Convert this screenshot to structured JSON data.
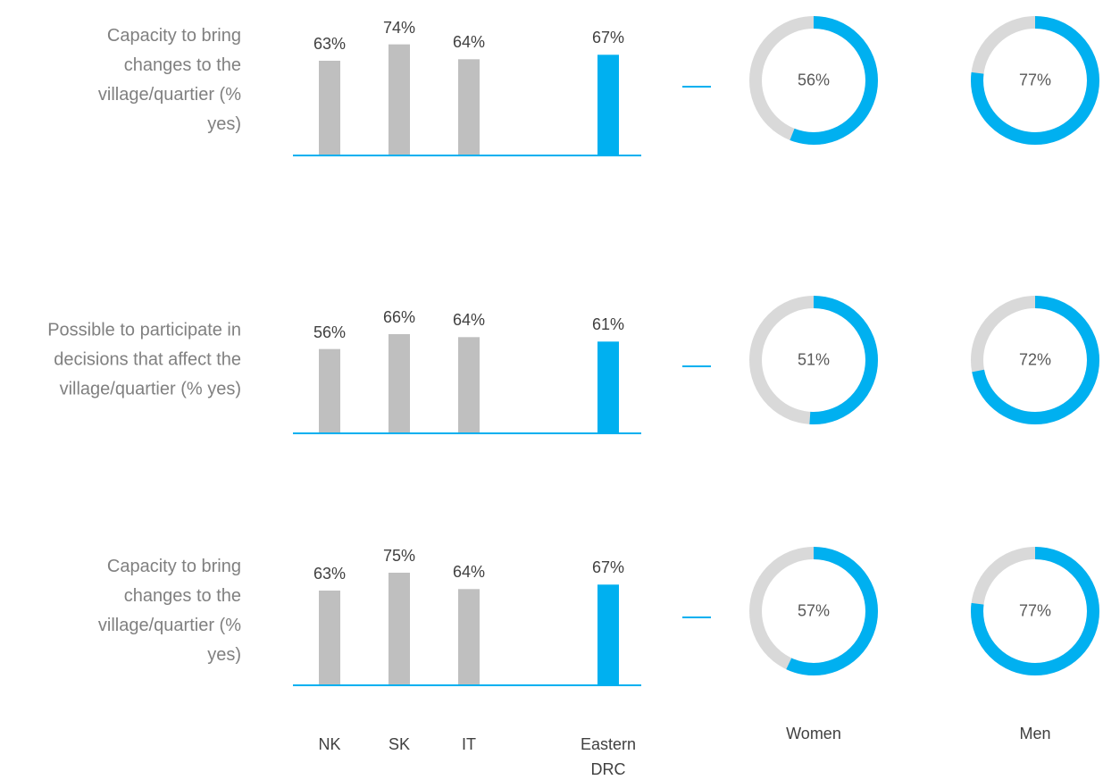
{
  "chart_data": {
    "type": "bar-donut-panel",
    "categories": [
      "NK",
      "SK",
      "IT",
      "Eastern DRC"
    ],
    "bar_colors": [
      "#bfbfbf",
      "#bfbfbf",
      "#bfbfbf",
      "#00b0f0"
    ],
    "donut_labels": [
      "Women",
      "Men"
    ],
    "donut_color": "#00b0f0",
    "donut_rest_color": "#d9d9d9",
    "rows": [
      {
        "title": "Capacity to bring changes to the village/quartier (% yes)",
        "values": [
          63,
          74,
          64,
          67
        ],
        "value_labels": [
          "63%",
          "74%",
          "64%",
          "67%"
        ],
        "donut_values": [
          56,
          77
        ],
        "donut_value_labels": [
          "56%",
          "77%"
        ]
      },
      {
        "title": "Possible to participate in decisions that affect the village/quartier (% yes)",
        "values": [
          56,
          66,
          64,
          61
        ],
        "value_labels": [
          "56%",
          "66%",
          "64%",
          "61%"
        ],
        "donut_values": [
          51,
          72
        ],
        "donut_value_labels": [
          "51%",
          "72%"
        ]
      },
      {
        "title": "Capacity to bring changes to the village/quartier (% yes)",
        "values": [
          63,
          75,
          64,
          67
        ],
        "value_labels": [
          "63%",
          "75%",
          "64%",
          "67%"
        ],
        "donut_values": [
          57,
          77
        ],
        "donut_value_labels": [
          "57%",
          "77%"
        ]
      }
    ]
  }
}
